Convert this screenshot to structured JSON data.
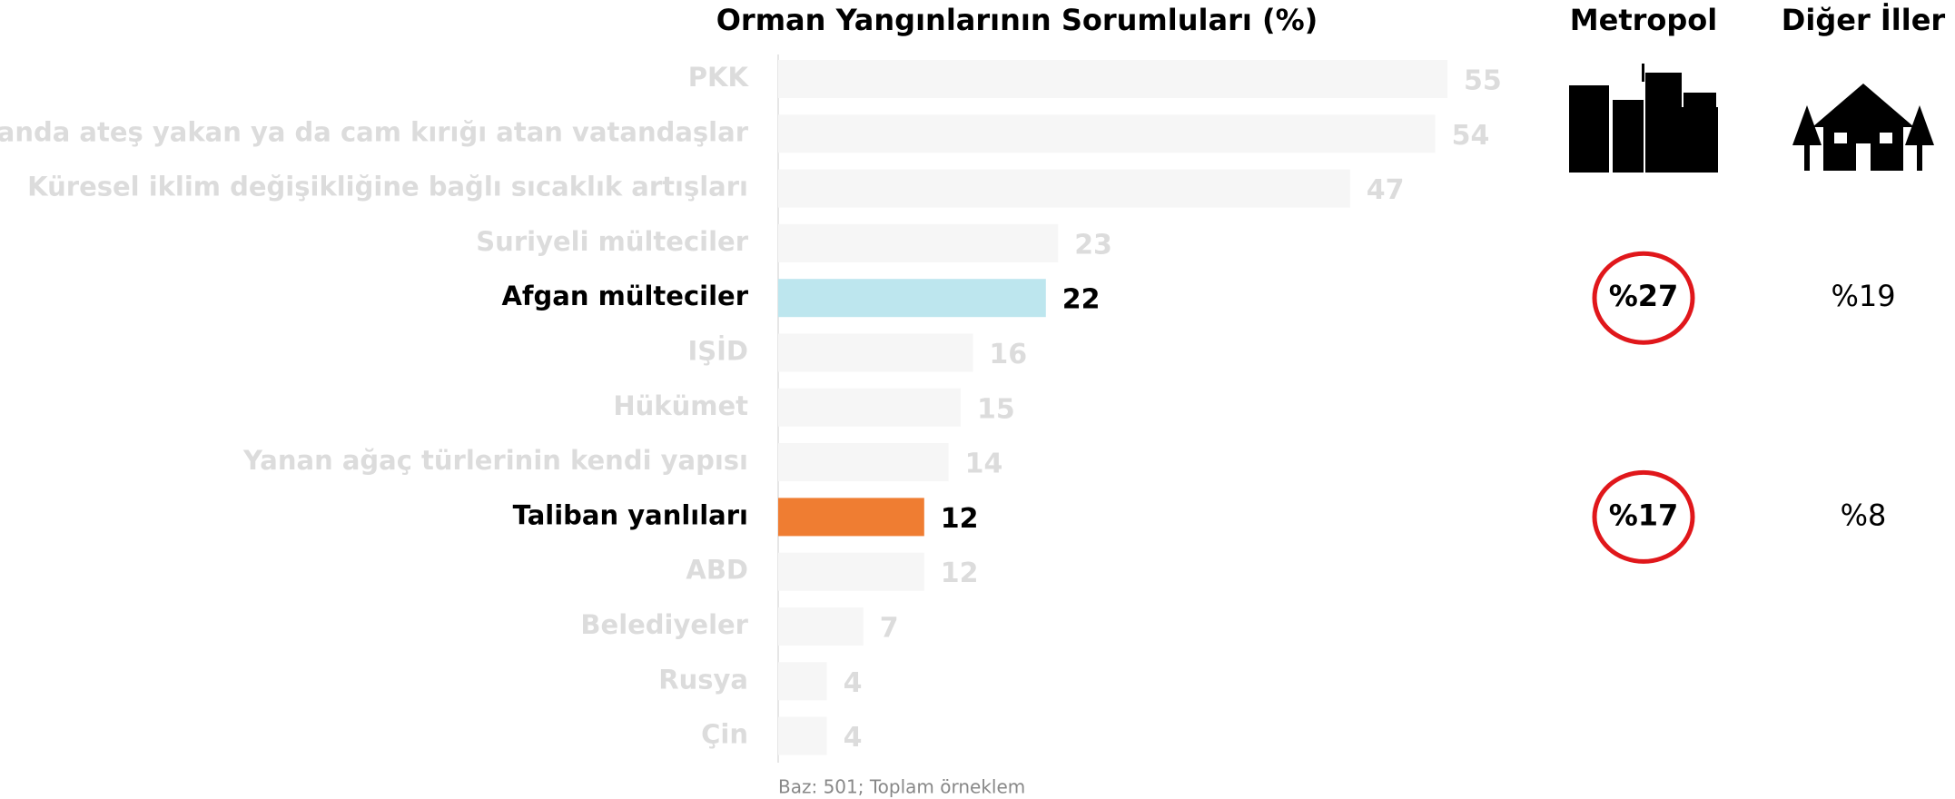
{
  "chart_data": {
    "type": "hbar",
    "title": "Orman Yangınlarının Sorumluları (%)",
    "categories": [
      "PKK",
      "Ormanda ateş yakan ya da cam kırığı atan vatandaşlar",
      "Küresel iklim değişikliğine bağlı sıcaklık artışları",
      "Suriyeli mülteciler",
      "Afgan mülteciler",
      "IŞİD",
      "Hükümet",
      "Yanan ağaç türlerinin kendi yapısı",
      "Taliban yanlıları",
      "ABD",
      "Belediyeler",
      "Rusya",
      "Çin"
    ],
    "values": [
      55,
      54,
      47,
      23,
      22,
      16,
      15,
      14,
      12,
      12,
      7,
      4,
      4
    ],
    "colors": [
      "#f6f6f6",
      "#f6f6f6",
      "#f6f6f6",
      "#f6f6f6",
      "#bde6ee",
      "#f6f6f6",
      "#f6f6f6",
      "#f6f6f6",
      "#ef7d32",
      "#f6f6f6",
      "#f6f6f6",
      "#f6f6f6",
      "#f6f6f6"
    ],
    "label_colors": [
      "#dcdcdc",
      "#dcdcdc",
      "#dcdcdc",
      "#dcdcdc",
      "#000000",
      "#dcdcdc",
      "#dcdcdc",
      "#dcdcdc",
      "#000000",
      "#dcdcdc",
      "#dcdcdc",
      "#dcdcdc",
      "#dcdcdc"
    ],
    "xlim": [
      0,
      55
    ],
    "note": "Baz: 501; Toplam örneklem"
  },
  "comparison": {
    "headers": [
      "Metropol",
      "Diğer İller"
    ],
    "rows": [
      {
        "values": [
          27,
          19
        ],
        "value_labels": [
          "%27",
          "%19"
        ]
      },
      {
        "values": [
          17,
          8
        ],
        "value_labels": [
          "%17",
          "%8"
        ]
      }
    ]
  }
}
